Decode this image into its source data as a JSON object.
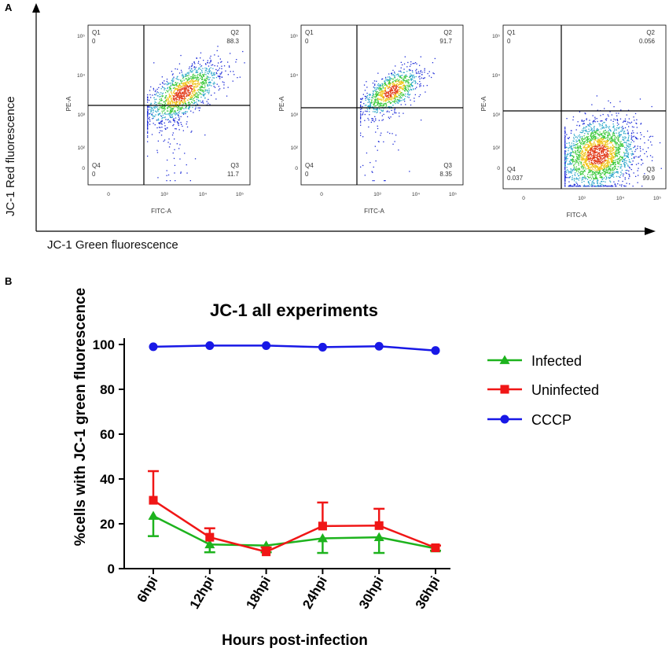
{
  "panelA": {
    "label": "A",
    "y_axis_label": "JC-1  Red fluorescence",
    "x_axis_label": "JC-1 Green fluorescence",
    "plots": [
      {
        "q1": "Q1",
        "q1_val": "0",
        "q2": "Q2",
        "q2_val": "88.3",
        "q3": "Q3",
        "q3_val": "11.7",
        "q4": "Q4",
        "q4_val": "0",
        "xlabel": "FITC-A",
        "ylabel": "PE-A"
      },
      {
        "q1": "Q1",
        "q1_val": "0",
        "q2": "Q2",
        "q2_val": "91.7",
        "q3": "Q3",
        "q3_val": "8.35",
        "q4": "Q4",
        "q4_val": "0",
        "xlabel": "FITC-A",
        "ylabel": "PE-A"
      },
      {
        "q1": "Q1",
        "q1_val": "0",
        "q2": "Q2",
        "q2_val": "0.056",
        "q3": "Q3",
        "q3_val": "99.9",
        "q4": "Q4",
        "q4_val": "0.037",
        "xlabel": "FITC-A",
        "ylabel": "PE-A"
      }
    ],
    "x_ticks": [
      "0",
      "10³",
      "10⁴",
      "10⁵"
    ],
    "y_ticks": [
      "10⁵",
      "10⁴",
      "10³",
      "10²",
      "0"
    ]
  },
  "panelB": {
    "label": "B"
  },
  "chart_data": {
    "type": "line",
    "title": "JC-1 all experiments",
    "xlabel": "Hours post-infection",
    "ylabel": "%cells with JC-1 green fluorescence",
    "categories": [
      "6hpi",
      "12hpi",
      "18hpi",
      "24hpi",
      "30hpi",
      "36hpi"
    ],
    "ylim": [
      0,
      100
    ],
    "yticks": [
      0,
      20,
      40,
      60,
      80,
      100
    ],
    "series": [
      {
        "name": "Infected",
        "color": "#1db31d",
        "marker": "triangle",
        "values": [
          23.5,
          10.8,
          10.3,
          13.5,
          14.0,
          9.0
        ],
        "error_low": [
          9.0,
          3.5,
          3.0,
          6.5,
          7.0,
          1.0
        ],
        "error_high": [
          0,
          0,
          0,
          0,
          0,
          0
        ]
      },
      {
        "name": "Uninfected",
        "color": "#f01616",
        "marker": "square",
        "values": [
          30.5,
          14.0,
          7.5,
          19.0,
          19.2,
          9.3
        ],
        "error_low": [
          0,
          0,
          0,
          0,
          0,
          0
        ],
        "error_high": [
          13.0,
          4.0,
          2.0,
          10.5,
          7.5,
          1.0
        ]
      },
      {
        "name": "CCCP",
        "color": "#1818e6",
        "marker": "circle",
        "values": [
          99.0,
          99.5,
          99.5,
          98.8,
          99.2,
          97.3
        ],
        "error_low": [
          0,
          0,
          0,
          0,
          0,
          0
        ],
        "error_high": [
          0,
          0,
          0,
          0,
          0,
          0
        ]
      }
    ]
  }
}
